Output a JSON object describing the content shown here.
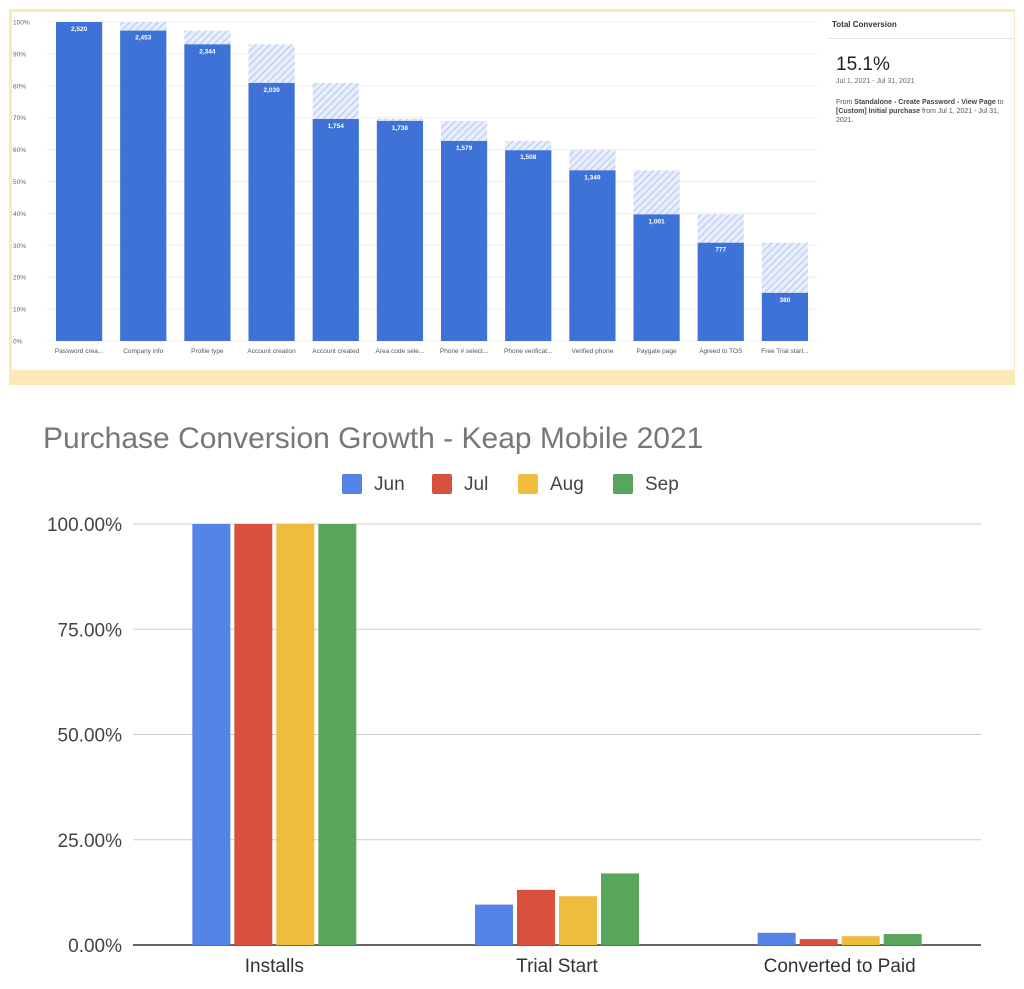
{
  "funnel": {
    "chart_data": {
      "type": "bar",
      "title": "",
      "xlabel": "",
      "ylabel": "",
      "ylim": [
        0,
        100
      ],
      "yticks": [
        "0%",
        "10%",
        "20%",
        "30%",
        "40%",
        "50%",
        "60%",
        "70%",
        "80%",
        "90%",
        "100%"
      ],
      "categories": [
        "Password crea...",
        "Company info",
        "Profile type",
        "Account creation",
        "Account created",
        "Area code sele...",
        "Phone # select...",
        "Phone verificat...",
        "Verified phone",
        "Paygate page",
        "Agreed to TOS",
        "Free Trial start..."
      ],
      "series": [
        {
          "values": [
            100,
            97.3,
            93.0,
            80.9,
            69.6,
            69.0,
            62.7,
            59.8,
            53.5,
            39.7,
            30.8,
            15.1
          ],
          "labels": [
            "2,520",
            "2,453",
            "2,344",
            "2,039",
            "1,754",
            "1,738",
            "1,579",
            "1,508",
            "1,349",
            "1,001",
            "777",
            "380"
          ]
        },
        {
          "values": [
            0,
            2.7,
            4.3,
            12.1,
            11.3,
            0.6,
            6.3,
            2.9,
            6.3,
            13.8,
            8.9,
            15.7
          ]
        }
      ],
      "colors": {
        "bar": "#3e72d6",
        "dropoff": "#b5c9ee"
      }
    },
    "panel": {
      "title": "Total Conversion",
      "value": "15.1%",
      "range": "Jul 1, 2021 - Jul 31, 2021",
      "desc_from": "From ",
      "desc_source": "Standalone - Create Password - View Page",
      "desc_to": " to ",
      "desc_target": "[Custom] Initial purchase",
      "desc_tail": " from Jul 1, 2021 - Jul 31, 2021."
    }
  },
  "growth": {
    "chart_data": {
      "type": "bar",
      "title": "Purchase Conversion Growth - Keap Mobile 2021",
      "xlabel": "",
      "ylabel": "",
      "ylim": [
        0,
        100
      ],
      "yticks": [
        "0.00%",
        "25.00%",
        "50.00%",
        "75.00%",
        "100.00%"
      ],
      "legend_position": "top",
      "categories": [
        "Installs",
        "Trial Start",
        "Converted to Paid"
      ],
      "series": [
        {
          "name": "Jun",
          "color": "#5584e8",
          "values": [
            100,
            9.6,
            2.9
          ]
        },
        {
          "name": "Jul",
          "color": "#d9503f",
          "values": [
            100,
            13.1,
            1.4
          ]
        },
        {
          "name": "Aug",
          "color": "#f0bc3e",
          "values": [
            100,
            11.6,
            2.1
          ]
        },
        {
          "name": "Sep",
          "color": "#58a65c",
          "values": [
            100,
            17.0,
            2.6
          ]
        }
      ]
    }
  }
}
